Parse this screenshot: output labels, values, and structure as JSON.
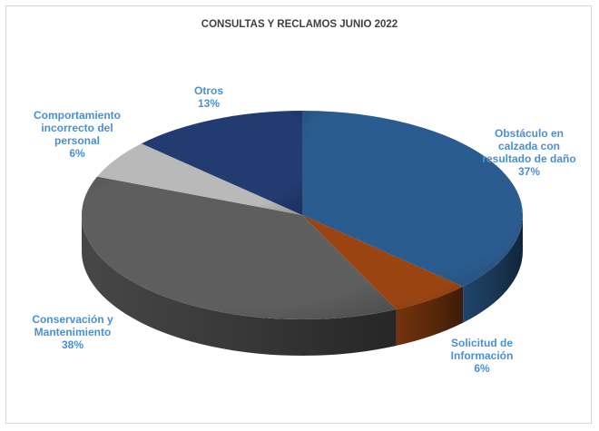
{
  "chart_data": {
    "type": "pie",
    "title": "CONSULTAS Y RECLAMOS JUNIO 2022",
    "slices": [
      {
        "label": "Obstáculo en calzada con resultado de daño",
        "value": 37,
        "percent_label": "37%",
        "color": "#2b5c8f"
      },
      {
        "label": "Solicitud de Información",
        "value": 6,
        "percent_label": "6%",
        "color": "#9a4412"
      },
      {
        "label": "Conservación y Mantenimiento",
        "value": 38,
        "percent_label": "38%",
        "color": "#5e5e5e"
      },
      {
        "label": "Comportamiento incorrecto del personal",
        "value": 6,
        "percent_label": "6%",
        "color": "#b9b9b9"
      },
      {
        "label": "Otros",
        "value": 13,
        "percent_label": "13%",
        "color": "#223c72"
      }
    ],
    "label_color": "#4a8fd4",
    "legend": "none"
  }
}
